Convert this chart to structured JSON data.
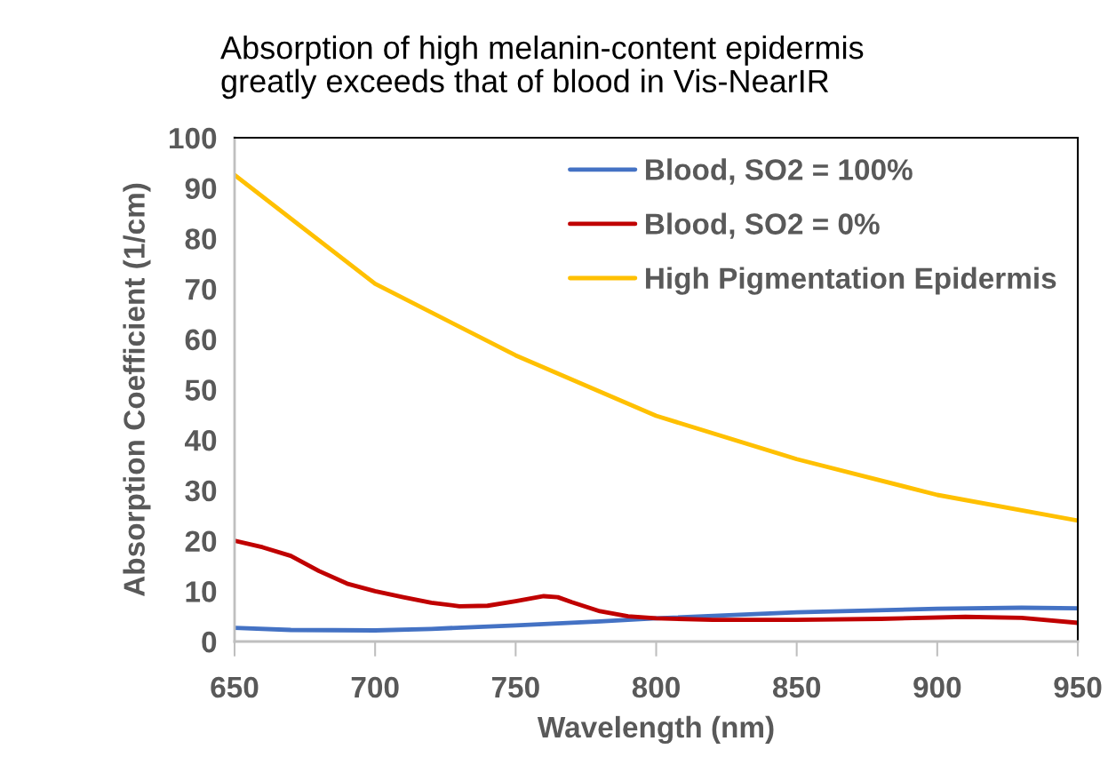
{
  "chart_data": {
    "type": "line",
    "title": "Absorption of high melanin-content epidermis\ngreatly exceeds that of blood in Vis-NearIR",
    "xlabel": "Wavelength (nm)",
    "ylabel": "Absorption Coefficient (1/cm)",
    "xlim": [
      650,
      950
    ],
    "xticks": [
      650,
      700,
      750,
      800,
      850,
      900,
      950
    ],
    "ylim": [
      0,
      100
    ],
    "yticks": [
      0,
      10,
      20,
      30,
      40,
      50,
      60,
      70,
      80,
      90,
      100
    ],
    "grid": false,
    "legend": "top right",
    "marker": "none",
    "line_style": "solid",
    "series": [
      {
        "name": "Blood, SO2 = 100%",
        "color": "#4472c4",
        "x": [
          650,
          670,
          700,
          720,
          750,
          780,
          800,
          850,
          900,
          930,
          950
        ],
        "values": [
          2.7,
          2.3,
          2.2,
          2.5,
          3.2,
          4.0,
          4.6,
          5.8,
          6.5,
          6.7,
          6.6
        ]
      },
      {
        "name": "Blood, SO2 = 0%",
        "color": "#c00000",
        "x": [
          650,
          660,
          670,
          680,
          690,
          700,
          710,
          720,
          730,
          740,
          750,
          760,
          765,
          770,
          780,
          790,
          800,
          820,
          850,
          880,
          910,
          930,
          950
        ],
        "values": [
          20,
          18.7,
          17,
          14,
          11.5,
          10,
          8.8,
          7.7,
          7.0,
          7.1,
          8,
          9,
          8.8,
          7.8,
          6,
          5,
          4.6,
          4.3,
          4.3,
          4.5,
          4.9,
          4.7,
          3.7
        ]
      },
      {
        "name": "High Pigmentation Epidermis",
        "color": "#ffc000",
        "x": [
          650,
          700,
          750,
          800,
          850,
          900,
          950
        ],
        "values": [
          92.6,
          71,
          56.8,
          44.8,
          36.2,
          29.1,
          24
        ]
      }
    ]
  }
}
